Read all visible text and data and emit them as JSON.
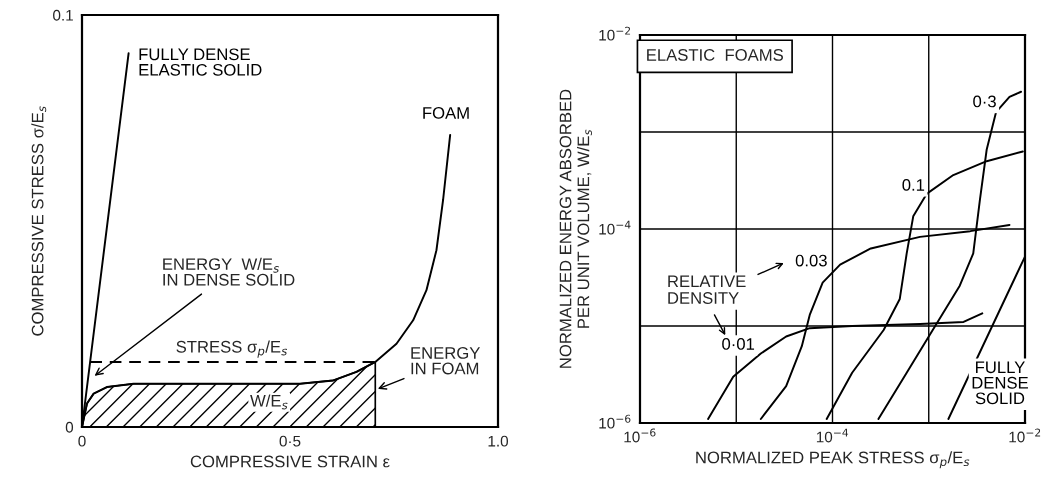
{
  "chart_data": [
    {
      "type": "line",
      "xlabel": "COMPRESSIVE STRAIN ε",
      "ylabel": "COMPRESSIVE STRESS σ/E$_{s}$",
      "xlim": [
        0,
        1.0
      ],
      "ylim": [
        0,
        0.1
      ],
      "xticks": [
        0,
        {
          "value": 0.5,
          "label": "0·5"
        },
        {
          "value": 1.0,
          "label": "1.0"
        }
      ],
      "yticks": [
        0,
        0.1
      ],
      "series": [
        {
          "name": "FULLY DENSE\nELASTIC SOLID",
          "color": "#000000",
          "x": [
            0,
            0.112
          ],
          "values": [
            0,
            0.0907
          ]
        },
        {
          "name": "FOAM",
          "color": "#000000",
          "x": [
            0,
            0.012,
            0.028,
            0.06,
            0.124,
            0.284,
            0.524,
            0.604,
            0.66,
            0.705,
            0.756,
            0.796,
            0.828,
            0.852,
            0.868,
            0.885
          ],
          "values": [
            0,
            0.0057,
            0.0081,
            0.0097,
            0.0105,
            0.0105,
            0.0105,
            0.0113,
            0.0134,
            0.0158,
            0.0202,
            0.0259,
            0.0332,
            0.0429,
            0.0551,
            0.0709
          ]
        },
        {
          "type": "area",
          "color": "#000000",
          "x": [
            0,
            0.012,
            0.028,
            0.06,
            0.124,
            0.284,
            0.524,
            0.604,
            0.66,
            0.705
          ],
          "values": [
            0,
            0.0057,
            0.0081,
            0.0097,
            0.0105,
            0.0105,
            0.0105,
            0.0113,
            0.0134,
            0.0158
          ]
        },
        {
          "color": "#000000",
          "line_style": "dashed",
          "x": [
            0.02,
            0.705
          ],
          "values": [
            0.0158,
            0.0158
          ]
        }
      ],
      "annotations": [
        {
          "text": "ENERGY  W/E$_{s}$\nIN DENSE SOLID",
          "x": 0.025,
          "y": 0.012
        },
        {
          "text": "STRESS σ$_{p}$/E$_{s}$",
          "x": 0.36,
          "y": 0.0158
        },
        {
          "text": "ENERGY\nIN FOAM",
          "x": 0.705,
          "y": 0.009
        },
        "W/E$_{s}$"
      ]
    },
    {
      "type": "line",
      "xlabel": "NORMALIZED PEAK STRESS σ$_{p}$/E$_{s}$",
      "ylabel": "NORMALIZED ENERGY ABSORBED\nPER UNIT VOLUME, W/E$_{s}$",
      "log": "xy",
      "grid": true,
      "xlim": [
        1e-06,
        0.01
      ],
      "ylim": [
        1e-06,
        0.01
      ],
      "xticks": [
        {
          "value": 1e-06,
          "label": "10$^{−6}$"
        },
        {
          "value": 1e-05,
          "label": null
        },
        {
          "value": 0.0001,
          "label": "10$^{−4}$"
        },
        {
          "value": 0.001,
          "label": null
        },
        {
          "value": 0.01,
          "label": "10$^{−2}$"
        }
      ],
      "yticks": [
        {
          "value": 1e-06,
          "label": "10$^{−6}$"
        },
        {
          "value": 1e-05,
          "label": null
        },
        {
          "value": 0.0001,
          "label": "10$^{−4}$"
        },
        {
          "value": 0.001,
          "label": null
        },
        {
          "value": 0.01,
          "label": "10$^{−2}$"
        }
      ],
      "series": [
        {
          "name": "0·01",
          "color": "#000000",
          "x": [
            5.1e-06,
            9.3e-06,
            1.8e-05,
            3.3e-05,
            5.8e-05,
            0.00016,
            0.00081,
            0.0023,
            0.0036
          ],
          "values": [
            1.1e-06,
            3e-06,
            5.2e-06,
            7.8e-06,
            9.5e-06,
            1e-05,
            1.05e-05,
            1.1e-05,
            1.35e-05
          ]
        },
        {
          "name": "0.03",
          "color": "#000000",
          "x": [
            1.8e-05,
            3.3e-05,
            4.8e-05,
            5.8e-05,
            7.9e-05,
            0.00012,
            0.00025,
            0.00081,
            0.0027,
            0.0069
          ],
          "values": [
            1.1e-06,
            2.4e-06,
            6.2e-06,
            1.3e-05,
            2.8e-05,
            4.3e-05,
            6.3e-05,
            8.3e-05,
            9.5e-05,
            0.00011
          ]
        },
        {
          "name": "0.1",
          "color": "#000000",
          "x": [
            8.7e-05,
            0.00016,
            0.00034,
            0.0005,
            0.00059,
            0.00069,
            0.00095,
            0.0018,
            0.004,
            0.0095
          ],
          "values": [
            1.1e-06,
            3.3e-06,
            9.1e-06,
            1.9e-05,
            5.6e-05,
            0.000135,
            0.00023,
            0.00036,
            0.0005,
            0.00063
          ]
        },
        {
          "name": "0·3",
          "color": "#000000",
          "x": [
            0.0003,
            0.00059,
            0.0011,
            0.0021,
            0.0029,
            0.0034,
            0.004,
            0.005,
            0.0069,
            0.0091
          ],
          "values": [
            1.1e-06,
            3.3e-06,
            9.1e-06,
            2.6e-05,
            5.6e-05,
            0.0002,
            0.00066,
            0.0016,
            0.0023,
            0.0026
          ]
        },
        {
          "name": "FULLY\nDENSE\nSOLID",
          "color": "#000000",
          "x": [
            0.0016,
            0.01
          ],
          "values": [
            1.1e-06,
            5.2e-05
          ]
        }
      ],
      "annotations": [
        "ELASTIC  FOAMS",
        "RELATIVE\nDENSITY"
      ]
    }
  ]
}
